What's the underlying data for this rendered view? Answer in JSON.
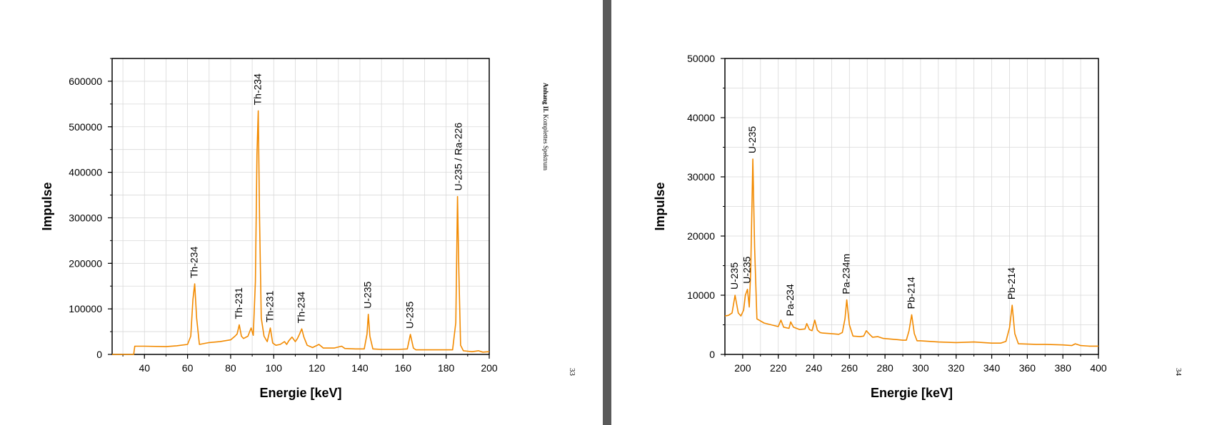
{
  "pages": [
    {
      "page_number": "33",
      "side_header_bold": "Anhang II.",
      "side_header_rest": " Komplettes Spektrum"
    },
    {
      "page_number": "34"
    }
  ],
  "colors": {
    "spectrum": "#f28a00",
    "grid": "#d9d9d9",
    "page": "#ffffff",
    "viewer_bg": "#6b6b6b"
  },
  "chart_data": [
    {
      "type": "line",
      "xlabel": "Energie [keV]",
      "ylabel": "Impulse",
      "xlim": [
        25,
        200
      ],
      "ylim": [
        0,
        650000
      ],
      "xticks": [
        40,
        60,
        80,
        100,
        120,
        140,
        160,
        180,
        200
      ],
      "yticks": [
        0,
        100000,
        200000,
        300000,
        400000,
        500000,
        600000
      ],
      "grid": true,
      "series": [
        {
          "x": [
            25,
            35,
            35.5,
            40,
            50,
            55,
            60,
            61.5,
            62.5,
            63.3,
            64.2,
            65.5,
            70,
            75,
            80,
            82,
            83,
            84,
            85,
            86,
            88,
            89.5,
            90.5,
            91.5,
            92.2,
            92.8,
            93.4,
            94.2,
            95.5,
            97,
            98.4,
            99.5,
            101,
            103,
            105,
            106,
            107,
            108.5,
            110,
            111,
            112,
            113,
            114,
            115.5,
            118,
            121,
            123,
            128,
            131.5,
            133,
            138,
            142,
            143.3,
            143.9,
            144.6,
            146,
            150,
            158,
            162,
            163.4,
            164.8,
            166,
            175,
            183,
            184.5,
            185.3,
            185.9,
            186.7,
            188,
            190,
            192,
            195,
            197,
            200
          ],
          "values": [
            0,
            0,
            18000,
            18000,
            17000,
            19000,
            22000,
            40000,
            120000,
            155000,
            80000,
            22000,
            26000,
            28000,
            32000,
            40000,
            45000,
            65000,
            40000,
            35000,
            40000,
            58000,
            42000,
            160000,
            440000,
            535000,
            300000,
            80000,
            40000,
            28000,
            58000,
            25000,
            20000,
            22000,
            28000,
            22000,
            30000,
            38000,
            28000,
            35000,
            45000,
            56000,
            38000,
            20000,
            15000,
            22000,
            14000,
            14000,
            18000,
            13000,
            12000,
            12000,
            45000,
            88000,
            40000,
            12000,
            11000,
            11000,
            12000,
            44000,
            14000,
            10000,
            10000,
            10000,
            70000,
            347000,
            180000,
            20000,
            8000,
            7000,
            6000,
            8000,
            5000,
            6000
          ]
        }
      ],
      "peak_labels": [
        {
          "text": "Th-234",
          "x": 63.3,
          "y": 155000
        },
        {
          "text": "Th-231",
          "x": 84,
          "y": 65000
        },
        {
          "text": "Th-234",
          "x": 92.8,
          "y": 535000
        },
        {
          "text": "Th-231",
          "x": 98.4,
          "y": 58000
        },
        {
          "text": "Th-234",
          "x": 113,
          "y": 56000
        },
        {
          "text": "U-235",
          "x": 143.9,
          "y": 88000
        },
        {
          "text": "U-235",
          "x": 163.4,
          "y": 44000
        },
        {
          "text": "U-235 / Ra-226",
          "x": 185.9,
          "y": 347000
        }
      ]
    },
    {
      "type": "line",
      "xlabel": "Energie [keV]",
      "ylabel": "Impulse",
      "xlim": [
        190,
        400
      ],
      "ylim": [
        0,
        50000
      ],
      "xticks": [
        200,
        220,
        240,
        260,
        280,
        300,
        320,
        340,
        360,
        380,
        400
      ],
      "yticks": [
        0,
        10000,
        20000,
        30000,
        40000,
        50000
      ],
      "grid": true,
      "series": [
        {
          "x": [
            190,
            192,
            194,
            195.7,
            197.5,
            199,
            200.5,
            201.5,
            202.7,
            203.7,
            204.5,
            205.7,
            206.7,
            208,
            212,
            216,
            220,
            221.5,
            223,
            226,
            227,
            228.5,
            232,
            235,
            236,
            237.5,
            239,
            240.5,
            242,
            243.5,
            245,
            250,
            254,
            256,
            257.5,
            258.5,
            260,
            262,
            266,
            268,
            269.5,
            271,
            273,
            276,
            279,
            283,
            287,
            290,
            292,
            293.5,
            295,
            296.5,
            298,
            300,
            310,
            320,
            330,
            340,
            345,
            348,
            350,
            351.5,
            353,
            355,
            365,
            370,
            380,
            385,
            387,
            390,
            395,
            400
          ],
          "values": [
            6500,
            6600,
            7000,
            10000,
            7000,
            6500,
            7500,
            10000,
            11000,
            8000,
            14000,
            33000,
            18000,
            6000,
            5300,
            5000,
            4700,
            5800,
            4600,
            4400,
            5500,
            4600,
            4200,
            4300,
            5200,
            4200,
            4000,
            5800,
            4100,
            3700,
            3600,
            3500,
            3400,
            3700,
            6000,
            9200,
            5000,
            3100,
            3000,
            3100,
            4000,
            3500,
            2900,
            3000,
            2700,
            2600,
            2500,
            2400,
            2400,
            4000,
            6700,
            3500,
            2300,
            2300,
            2100,
            2000,
            2100,
            1900,
            1900,
            2200,
            4500,
            8300,
            3500,
            1800,
            1700,
            1700,
            1600,
            1500,
            1800,
            1500,
            1400,
            1400
          ]
        }
      ],
      "peak_labels": [
        {
          "text": "U-235",
          "x": 195.7,
          "y": 10000
        },
        {
          "text": "U-235",
          "x": 202.7,
          "y": 11000
        },
        {
          "text": "U-235",
          "x": 205.7,
          "y": 33000
        },
        {
          "text": "Pa-234",
          "x": 227,
          "y": 5500
        },
        {
          "text": "Pa-234m",
          "x": 258.5,
          "y": 9200
        },
        {
          "text": "Pb-214",
          "x": 295,
          "y": 6700
        },
        {
          "text": "Pb-214",
          "x": 351.5,
          "y": 8300
        }
      ]
    }
  ]
}
